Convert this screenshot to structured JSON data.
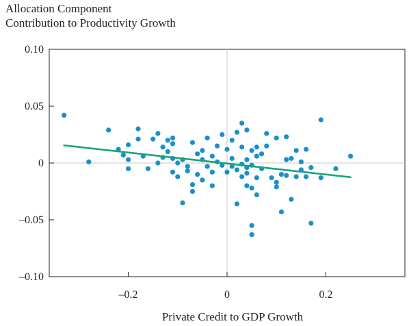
{
  "chart_data": {
    "type": "scatter",
    "title": "",
    "ylabel_lines": [
      "Allocation Component",
      "Contribution to Productivity Growth"
    ],
    "xlabel": "Private Credit to GDP Growth",
    "xlim": [
      -0.36,
      0.36
    ],
    "ylim": [
      -0.1,
      0.1
    ],
    "x_ticks": [
      -0.2,
      0,
      0.2
    ],
    "x_tick_labels": [
      "–0.2",
      "0",
      "0.2"
    ],
    "y_ticks": [
      0.1,
      0.05,
      0,
      -0.05,
      -0.1
    ],
    "y_tick_labels": [
      "0.10",
      "0.05",
      "0",
      "–0.05",
      "–0.10"
    ],
    "grid": false,
    "reference_lines": {
      "x": 0,
      "y": 0
    },
    "point_color": "#1a8fc9",
    "fit_line_color": "#1aa37a",
    "fit_line": {
      "x": [
        -0.33,
        0.25
      ],
      "y": [
        0.0155,
        -0.0125
      ]
    },
    "points": [
      {
        "x": -0.33,
        "y": 0.042
      },
      {
        "x": -0.28,
        "y": 0.001
      },
      {
        "x": -0.24,
        "y": 0.029
      },
      {
        "x": -0.22,
        "y": 0.012
      },
      {
        "x": -0.21,
        "y": 0.007
      },
      {
        "x": -0.2,
        "y": 0.016
      },
      {
        "x": -0.2,
        "y": 0.003
      },
      {
        "x": -0.2,
        "y": -0.005
      },
      {
        "x": -0.18,
        "y": 0.03
      },
      {
        "x": -0.18,
        "y": 0.021
      },
      {
        "x": -0.17,
        "y": 0.006
      },
      {
        "x": -0.16,
        "y": -0.005
      },
      {
        "x": -0.15,
        "y": 0.021
      },
      {
        "x": -0.14,
        "y": 0.026
      },
      {
        "x": -0.14,
        "y": 0.0
      },
      {
        "x": -0.13,
        "y": 0.014
      },
      {
        "x": -0.13,
        "y": 0.005
      },
      {
        "x": -0.12,
        "y": 0.02
      },
      {
        "x": -0.12,
        "y": 0.01
      },
      {
        "x": -0.11,
        "y": 0.022
      },
      {
        "x": -0.11,
        "y": 0.017
      },
      {
        "x": -0.11,
        "y": 0.004
      },
      {
        "x": -0.11,
        "y": -0.008
      },
      {
        "x": -0.1,
        "y": 0.0
      },
      {
        "x": -0.1,
        "y": -0.012
      },
      {
        "x": -0.09,
        "y": -0.035
      },
      {
        "x": -0.09,
        "y": 0.003
      },
      {
        "x": -0.08,
        "y": -0.003
      },
      {
        "x": -0.08,
        "y": -0.007
      },
      {
        "x": -0.07,
        "y": -0.019
      },
      {
        "x": -0.07,
        "y": -0.025
      },
      {
        "x": -0.07,
        "y": 0.018
      },
      {
        "x": -0.06,
        "y": 0.008
      },
      {
        "x": -0.06,
        "y": -0.01
      },
      {
        "x": -0.05,
        "y": 0.011
      },
      {
        "x": -0.05,
        "y": 0.003
      },
      {
        "x": -0.05,
        "y": -0.015
      },
      {
        "x": -0.04,
        "y": 0.022
      },
      {
        "x": -0.04,
        "y": -0.003
      },
      {
        "x": -0.03,
        "y": 0.006
      },
      {
        "x": -0.03,
        "y": -0.008
      },
      {
        "x": -0.03,
        "y": -0.02
      },
      {
        "x": -0.02,
        "y": 0.015
      },
      {
        "x": -0.02,
        "y": 0.001
      },
      {
        "x": -0.01,
        "y": 0.025
      },
      {
        "x": -0.01,
        "y": -0.002
      },
      {
        "x": 0.0,
        "y": 0.012
      },
      {
        "x": 0.0,
        "y": -0.008
      },
      {
        "x": 0.01,
        "y": 0.02
      },
      {
        "x": 0.01,
        "y": 0.004
      },
      {
        "x": 0.01,
        "y": -0.003
      },
      {
        "x": 0.02,
        "y": 0.027
      },
      {
        "x": 0.02,
        "y": -0.006
      },
      {
        "x": 0.02,
        "y": -0.036
      },
      {
        "x": 0.03,
        "y": 0.035
      },
      {
        "x": 0.03,
        "y": 0.014
      },
      {
        "x": 0.03,
        "y": -0.001
      },
      {
        "x": 0.03,
        "y": -0.012
      },
      {
        "x": 0.04,
        "y": 0.029
      },
      {
        "x": 0.04,
        "y": 0.003
      },
      {
        "x": 0.04,
        "y": -0.004
      },
      {
        "x": 0.04,
        "y": -0.02
      },
      {
        "x": 0.04,
        "y": -0.009
      },
      {
        "x": 0.05,
        "y": 0.011
      },
      {
        "x": 0.05,
        "y": -0.002
      },
      {
        "x": 0.05,
        "y": -0.022
      },
      {
        "x": 0.05,
        "y": -0.055
      },
      {
        "x": 0.05,
        "y": -0.063
      },
      {
        "x": 0.06,
        "y": 0.014
      },
      {
        "x": 0.06,
        "y": 0.006
      },
      {
        "x": 0.06,
        "y": -0.013
      },
      {
        "x": 0.06,
        "y": -0.028
      },
      {
        "x": 0.07,
        "y": 0.008
      },
      {
        "x": 0.07,
        "y": -0.005
      },
      {
        "x": 0.08,
        "y": 0.026
      },
      {
        "x": 0.08,
        "y": 0.015
      },
      {
        "x": 0.09,
        "y": -0.013
      },
      {
        "x": 0.1,
        "y": 0.022
      },
      {
        "x": 0.1,
        "y": -0.017
      },
      {
        "x": 0.1,
        "y": -0.021
      },
      {
        "x": 0.11,
        "y": -0.01
      },
      {
        "x": 0.11,
        "y": -0.043
      },
      {
        "x": 0.12,
        "y": 0.023
      },
      {
        "x": 0.12,
        "y": 0.003
      },
      {
        "x": 0.12,
        "y": -0.011
      },
      {
        "x": 0.13,
        "y": 0.004
      },
      {
        "x": 0.13,
        "y": -0.032
      },
      {
        "x": 0.14,
        "y": 0.011
      },
      {
        "x": 0.14,
        "y": -0.012
      },
      {
        "x": 0.15,
        "y": 0.001
      },
      {
        "x": 0.15,
        "y": -0.006
      },
      {
        "x": 0.16,
        "y": 0.012
      },
      {
        "x": 0.16,
        "y": -0.012
      },
      {
        "x": 0.17,
        "y": -0.053
      },
      {
        "x": 0.17,
        "y": -0.004
      },
      {
        "x": 0.19,
        "y": 0.038
      },
      {
        "x": 0.19,
        "y": -0.013
      },
      {
        "x": 0.22,
        "y": -0.005
      },
      {
        "x": 0.25,
        "y": 0.006
      }
    ]
  }
}
